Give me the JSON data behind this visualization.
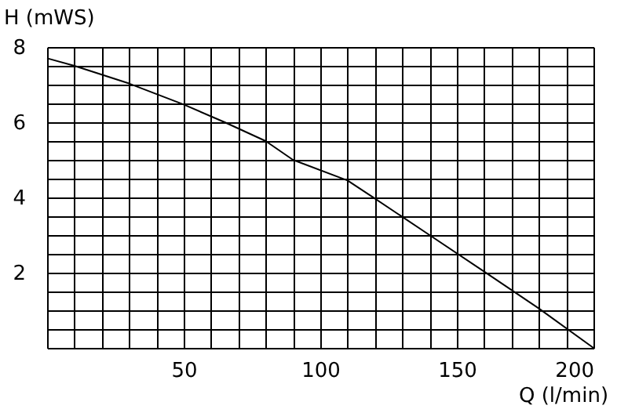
{
  "chart_data": {
    "type": "line",
    "xlabel": "Q (l/min)",
    "ylabel": "H  (mWS)",
    "x": [
      0,
      10,
      30,
      50,
      65,
      80,
      90,
      110,
      120,
      140,
      160,
      180,
      200
    ],
    "values": [
      7.7,
      7.5,
      7.03,
      6.47,
      6.0,
      5.5,
      5.0,
      4.45,
      3.97,
      3.0,
      2.03,
      1.05,
      0
    ],
    "color": "#000000",
    "marker": "none",
    "line_style": "solid",
    "grid": true,
    "xlim": [
      0,
      200
    ],
    "ylim": [
      0,
      8
    ],
    "xticks": [
      {
        "value": 0,
        "label": null
      },
      {
        "value": 10,
        "label": null
      },
      {
        "value": 20,
        "label": null
      },
      {
        "value": 30,
        "label": null
      },
      {
        "value": 40,
        "label": null
      },
      50,
      {
        "value": 60,
        "label": null
      },
      {
        "value": 70,
        "label": null
      },
      {
        "value": 80,
        "label": null
      },
      {
        "value": 90,
        "label": null
      },
      100,
      {
        "value": 110,
        "label": null
      },
      {
        "value": 120,
        "label": null
      },
      {
        "value": 130,
        "label": null
      },
      {
        "value": 140,
        "label": null
      },
      150,
      {
        "value": 160,
        "label": null
      },
      {
        "value": 170,
        "label": null
      },
      {
        "value": 180,
        "label": null
      },
      {
        "value": 190,
        "label": null
      },
      200
    ],
    "yticks": [
      {
        "value": 0,
        "label": null
      },
      {
        "value": 0.5,
        "label": null
      },
      {
        "value": 1,
        "label": null
      },
      {
        "value": 1.5,
        "label": null
      },
      2,
      {
        "value": 2.5,
        "label": null
      },
      {
        "value": 3,
        "label": null
      },
      {
        "value": 3.5,
        "label": null
      },
      4,
      {
        "value": 4.5,
        "label": null
      },
      {
        "value": 5,
        "label": null
      },
      {
        "value": 5.5,
        "label": null
      },
      6,
      {
        "value": 6.5,
        "label": null
      },
      {
        "value": 7,
        "label": null
      },
      {
        "value": 7.5,
        "label": null
      },
      8
    ]
  }
}
